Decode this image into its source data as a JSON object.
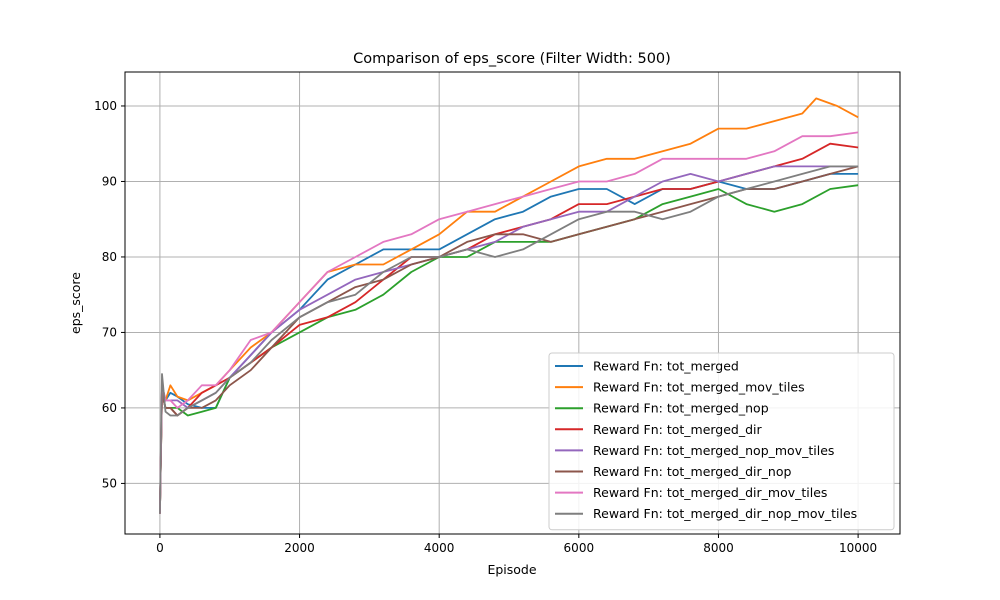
{
  "chart_data": {
    "type": "line",
    "title": "Comparison of eps_score (Filter Width: 500)",
    "xlabel": "Episode",
    "ylabel": "eps_score",
    "xlim": [
      -500,
      10600
    ],
    "ylim": [
      43.3,
      104.5
    ],
    "xticks": [
      0,
      2000,
      4000,
      6000,
      8000,
      10000
    ],
    "yticks": [
      50,
      60,
      70,
      80,
      90,
      100
    ],
    "grid": true,
    "legend_position": "lower-right",
    "series": [
      {
        "name": "Reward Fn: tot_merged",
        "color": "#1f77b4",
        "x": [
          0,
          30,
          80,
          150,
          250,
          400,
          600,
          800,
          1000,
          1300,
          1600,
          2000,
          2400,
          2800,
          3200,
          3600,
          4000,
          4400,
          4800,
          5200,
          5600,
          6000,
          6400,
          6800,
          7200,
          7600,
          8000,
          8400,
          8800,
          9200,
          9600,
          10000
        ],
        "y": [
          46,
          63,
          61,
          62,
          61.5,
          60.5,
          60,
          60,
          64,
          67,
          70,
          73,
          77,
          79,
          81,
          81,
          81,
          83,
          85,
          86,
          88,
          89,
          89,
          87,
          89,
          89,
          90,
          89,
          89,
          90,
          91,
          91
        ]
      },
      {
        "name": "Reward Fn: tot_merged_mov_tiles",
        "color": "#ff7f0e",
        "x": [
          0,
          30,
          80,
          150,
          250,
          400,
          600,
          800,
          1000,
          1300,
          1600,
          2000,
          2400,
          2800,
          3200,
          3600,
          4000,
          4400,
          4800,
          5200,
          5600,
          6000,
          6400,
          6800,
          7200,
          7600,
          8000,
          8400,
          8800,
          9200,
          9400,
          9700,
          10000
        ],
        "y": [
          46,
          63,
          61,
          63,
          61.5,
          61,
          62,
          63,
          65,
          68,
          70,
          74,
          78,
          79,
          79,
          81,
          83,
          86,
          86,
          88,
          90,
          92,
          93,
          93,
          94,
          95,
          97,
          97,
          98,
          99,
          101,
          100,
          98.5
        ]
      },
      {
        "name": "Reward Fn: tot_merged_nop",
        "color": "#2ca02c",
        "x": [
          0,
          30,
          80,
          150,
          250,
          400,
          600,
          800,
          1000,
          1300,
          1600,
          2000,
          2400,
          2800,
          3200,
          3600,
          4000,
          4400,
          4800,
          5200,
          5600,
          6000,
          6400,
          6800,
          7200,
          7600,
          8000,
          8400,
          8800,
          9200,
          9600,
          10000
        ],
        "y": [
          46,
          62,
          60,
          60,
          60,
          59,
          59.5,
          60,
          64,
          66,
          68,
          70,
          72,
          73,
          75,
          78,
          80,
          80,
          82,
          82,
          82,
          83,
          84,
          85,
          87,
          88,
          89,
          87,
          86,
          87,
          89,
          89.5
        ]
      },
      {
        "name": "Reward Fn: tot_merged_dir",
        "color": "#d62728",
        "x": [
          0,
          30,
          80,
          150,
          250,
          400,
          600,
          800,
          1000,
          1300,
          1600,
          2000,
          2400,
          2800,
          3200,
          3600,
          4000,
          4400,
          4800,
          5200,
          5600,
          6000,
          6400,
          6800,
          7200,
          7600,
          8000,
          8400,
          8800,
          9200,
          9600,
          10000
        ],
        "y": [
          46,
          62,
          60,
          60,
          59,
          60,
          62,
          63,
          64,
          66,
          68,
          71,
          72,
          74,
          77,
          80,
          80,
          81,
          83,
          84,
          85,
          87,
          87,
          88,
          89,
          89,
          90,
          91,
          92,
          93,
          95,
          94.5
        ]
      },
      {
        "name": "Reward Fn: tot_merged_nop_mov_tiles",
        "color": "#9467bd",
        "x": [
          0,
          30,
          80,
          150,
          250,
          400,
          600,
          800,
          1000,
          1300,
          1600,
          2000,
          2400,
          2800,
          3200,
          3600,
          4000,
          4400,
          4800,
          5200,
          5600,
          6000,
          6400,
          6800,
          7200,
          7600,
          8000,
          8400,
          8800,
          9200,
          9600,
          10000
        ],
        "y": [
          46,
          63,
          61,
          61,
          61,
          60,
          61,
          62,
          64,
          67,
          70,
          73,
          75,
          77,
          78,
          79,
          80,
          81,
          82,
          84,
          85,
          86,
          86,
          88,
          90,
          91,
          90,
          91,
          92,
          92,
          92,
          92
        ]
      },
      {
        "name": "Reward Fn: tot_merged_dir_nop",
        "color": "#8c564b",
        "x": [
          0,
          30,
          80,
          150,
          250,
          400,
          600,
          800,
          1000,
          1300,
          1600,
          2000,
          2400,
          2800,
          3200,
          3600,
          4000,
          4400,
          4800,
          5200,
          5600,
          6000,
          6400,
          6800,
          7200,
          7600,
          8000,
          8400,
          8800,
          9200,
          9600,
          10000
        ],
        "y": [
          46,
          62,
          60,
          60,
          59,
          60,
          60,
          61,
          63,
          65,
          68,
          72,
          74,
          76,
          77,
          79,
          80,
          82,
          83,
          83,
          82,
          83,
          84,
          85,
          86,
          87,
          88,
          89,
          89,
          90,
          91,
          92
        ]
      },
      {
        "name": "Reward Fn: tot_merged_dir_mov_tiles",
        "color": "#e377c2",
        "x": [
          0,
          30,
          80,
          150,
          250,
          400,
          600,
          800,
          1000,
          1300,
          1600,
          2000,
          2400,
          2800,
          3200,
          3600,
          4000,
          4400,
          4800,
          5200,
          5600,
          6000,
          6400,
          6800,
          7200,
          7600,
          8000,
          8400,
          8800,
          9200,
          9600,
          10000
        ],
        "y": [
          46,
          63,
          61,
          61,
          60,
          61,
          63,
          63,
          65,
          69,
          70,
          74,
          78,
          80,
          82,
          83,
          85,
          86,
          87,
          88,
          89,
          90,
          90,
          91,
          93,
          93,
          93,
          93,
          94,
          96,
          96,
          96.5
        ]
      },
      {
        "name": "Reward Fn: tot_merged_dir_nop_mov_tiles",
        "color": "#7f7f7f",
        "x": [
          0,
          30,
          80,
          150,
          250,
          400,
          600,
          800,
          1000,
          1300,
          1600,
          2000,
          2400,
          2800,
          3200,
          3600,
          4000,
          4400,
          4800,
          5200,
          5600,
          6000,
          6400,
          6800,
          7200,
          7600,
          8000,
          8400,
          8800,
          9200,
          9600,
          10000
        ],
        "y": [
          46,
          64.5,
          59.5,
          59,
          59,
          60,
          61,
          62,
          64,
          66,
          69,
          72,
          74,
          75,
          78,
          80,
          80,
          81,
          80,
          81,
          83,
          85,
          86,
          86,
          85,
          86,
          88,
          89,
          90,
          91,
          92,
          92
        ]
      }
    ]
  }
}
